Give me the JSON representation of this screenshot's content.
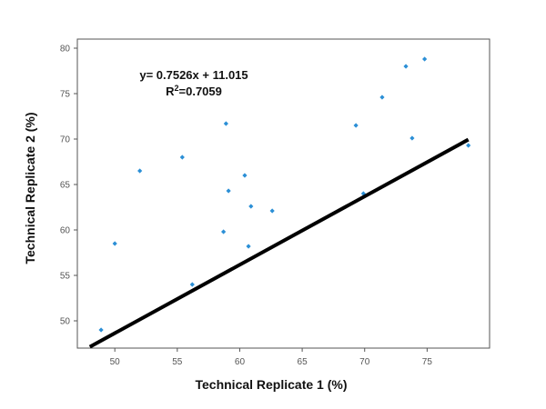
{
  "chart_data": {
    "type": "scatter",
    "xlabel": "Technical Replicate 1 (%)",
    "ylabel": "Technical Replicate 2 (%)",
    "xlim": [
      47,
      80
    ],
    "ylim": [
      47,
      81
    ],
    "xticks": [
      50,
      55,
      60,
      65,
      70,
      75
    ],
    "yticks": [
      50,
      55,
      60,
      65,
      70,
      75,
      80
    ],
    "grid": false,
    "points": [
      {
        "x": 48.9,
        "y": 49.0
      },
      {
        "x": 50.0,
        "y": 58.5
      },
      {
        "x": 52.0,
        "y": 66.5
      },
      {
        "x": 55.4,
        "y": 68.0
      },
      {
        "x": 56.2,
        "y": 54.0
      },
      {
        "x": 58.7,
        "y": 59.8
      },
      {
        "x": 58.9,
        "y": 71.7
      },
      {
        "x": 59.1,
        "y": 64.3
      },
      {
        "x": 60.4,
        "y": 66.0
      },
      {
        "x": 60.7,
        "y": 58.2
      },
      {
        "x": 60.9,
        "y": 62.6
      },
      {
        "x": 62.6,
        "y": 62.1
      },
      {
        "x": 69.3,
        "y": 71.5
      },
      {
        "x": 69.9,
        "y": 64.0
      },
      {
        "x": 71.4,
        "y": 74.6
      },
      {
        "x": 73.3,
        "y": 78.0
      },
      {
        "x": 73.8,
        "y": 70.1
      },
      {
        "x": 74.8,
        "y": 78.8
      },
      {
        "x": 78.3,
        "y": 69.3
      }
    ],
    "point_color": "#2b8fd6",
    "trendline": {
      "slope": 0.7526,
      "intercept": 11.015,
      "x_range": [
        48.0,
        78.3
      ],
      "color": "#000000"
    },
    "annotation": {
      "equation": "y= 0.7526x + 11.015",
      "r2_prefix": "R",
      "r2_sup": "2",
      "r2_value": "=0.7059"
    }
  }
}
